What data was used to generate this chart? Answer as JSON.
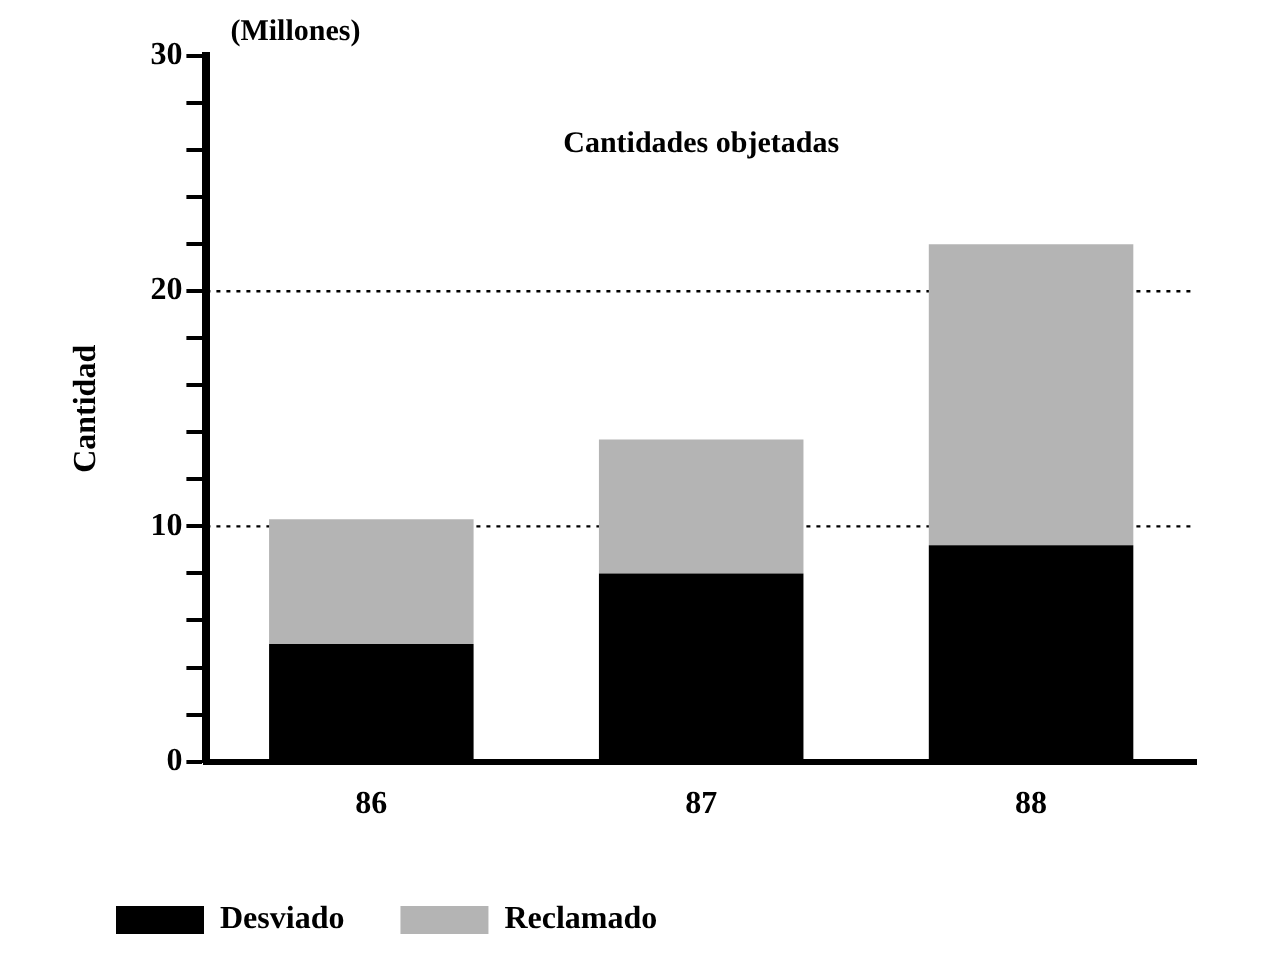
{
  "chart_data": {
    "type": "bar",
    "title": "Cantidades objetadas",
    "ylabel": "Cantidad",
    "annotations": [
      "(Millones)"
    ],
    "categories": [
      "86",
      "87",
      "88"
    ],
    "stacked": true,
    "series": [
      {
        "name": "Desviado",
        "color": "#000000",
        "values": [
          5,
          8,
          9.2
        ]
      },
      {
        "name": "Reclamado",
        "color": "#b4b4b4",
        "values": [
          5.3,
          5.7,
          12.8
        ]
      }
    ],
    "ylim": [
      0,
      30
    ],
    "yticks": [
      0,
      {
        "value": 2,
        "label": null
      },
      {
        "value": 4,
        "label": null
      },
      {
        "value": 6,
        "label": null
      },
      {
        "value": 8,
        "label": null
      },
      10,
      {
        "value": 12,
        "label": null
      },
      {
        "value": 14,
        "label": null
      },
      {
        "value": 16,
        "label": null
      },
      {
        "value": 18,
        "label": null
      },
      20,
      {
        "value": 22,
        "label": null
      },
      {
        "value": 24,
        "label": null
      },
      {
        "value": 26,
        "label": null
      },
      {
        "value": 28,
        "label": null
      },
      30
    ],
    "ref_lines": [
      {
        "axis": "y",
        "value": 10,
        "line_style": "dotted",
        "color": "#000000"
      },
      {
        "axis": "y",
        "value": 20,
        "line_style": "dotted",
        "color": "#000000"
      }
    ],
    "grid": false,
    "legend": "bottom left"
  }
}
